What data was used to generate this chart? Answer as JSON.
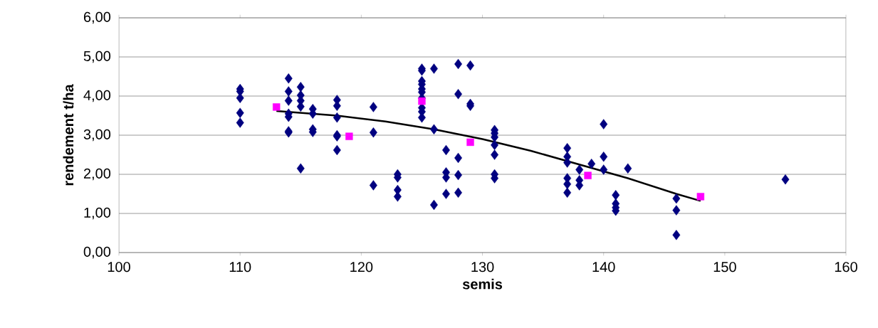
{
  "chart_data": {
    "type": "scatter",
    "xlabel": "semis",
    "ylabel": "rendement t/ha",
    "xlim": [
      100,
      160
    ],
    "xticks": [
      100,
      110,
      120,
      130,
      140,
      150,
      160
    ],
    "ylim": [
      0,
      6
    ],
    "yticks": [
      {
        "value": 0,
        "label": "0,00"
      },
      {
        "value": 1,
        "label": "1,00"
      },
      {
        "value": 2,
        "label": "2,00"
      },
      {
        "value": 3,
        "label": "3,00"
      },
      {
        "value": 4,
        "label": "4,00"
      },
      {
        "value": 5,
        "label": "5,00"
      },
      {
        "value": 6,
        "label": "6,00"
      }
    ],
    "grid": "y",
    "series": [
      {
        "marker": "diamond",
        "color": "#000080",
        "x": [
          110,
          110,
          110,
          110,
          110,
          114,
          114,
          114,
          114,
          114,
          114,
          114,
          115,
          115,
          115,
          115,
          115,
          116,
          116,
          116,
          116,
          118,
          118,
          118,
          118,
          118,
          118,
          121,
          121,
          121,
          123,
          123,
          123,
          123,
          125,
          125,
          125,
          125,
          125,
          125,
          125,
          125,
          125,
          125,
          126,
          126,
          126,
          127,
          127,
          127,
          127,
          128,
          128,
          128,
          128,
          128,
          129,
          129,
          129,
          131,
          131,
          131,
          131,
          131,
          131,
          131,
          137,
          137,
          137,
          137,
          137,
          137,
          138,
          138,
          138,
          139,
          140,
          140,
          140,
          141,
          141,
          141,
          141,
          142,
          146,
          146,
          146,
          155
        ],
        "values": [
          4.18,
          4.12,
          3.95,
          3.57,
          3.32,
          4.45,
          4.12,
          3.88,
          3.55,
          3.47,
          3.1,
          3.07,
          4.23,
          4.02,
          3.88,
          3.73,
          2.15,
          3.67,
          3.55,
          3.15,
          3.08,
          3.9,
          3.75,
          3.45,
          3.0,
          2.97,
          2.62,
          3.72,
          3.07,
          1.72,
          2.0,
          1.92,
          1.6,
          1.43,
          4.7,
          4.65,
          4.38,
          4.3,
          4.18,
          4.1,
          3.95,
          3.7,
          3.6,
          3.45,
          4.7,
          3.15,
          1.22,
          2.62,
          2.05,
          1.92,
          1.5,
          4.82,
          4.05,
          2.42,
          1.98,
          1.53,
          4.78,
          3.8,
          3.75,
          3.13,
          3.05,
          2.95,
          2.75,
          2.5,
          2.0,
          1.9,
          2.67,
          2.45,
          2.3,
          1.9,
          1.75,
          1.53,
          2.12,
          1.85,
          1.72,
          2.27,
          3.28,
          2.45,
          2.12,
          1.47,
          1.25,
          1.15,
          1.07,
          2.15,
          1.38,
          1.08,
          0.45,
          1.87
        ]
      },
      {
        "marker": "square",
        "color": "#ff00ff",
        "x": [
          113,
          119,
          125,
          129,
          138.7,
          148
        ],
        "values": [
          3.72,
          2.97,
          3.87,
          2.82,
          1.97,
          1.43
        ]
      },
      {
        "type": "line",
        "marker": "none",
        "line_style": "solid",
        "color": "#000000",
        "x": [
          113,
          118,
          122,
          126,
          130,
          134,
          138,
          142,
          146,
          148
        ],
        "values": [
          3.62,
          3.5,
          3.35,
          3.15,
          2.9,
          2.6,
          2.25,
          1.9,
          1.5,
          1.32
        ]
      }
    ]
  }
}
